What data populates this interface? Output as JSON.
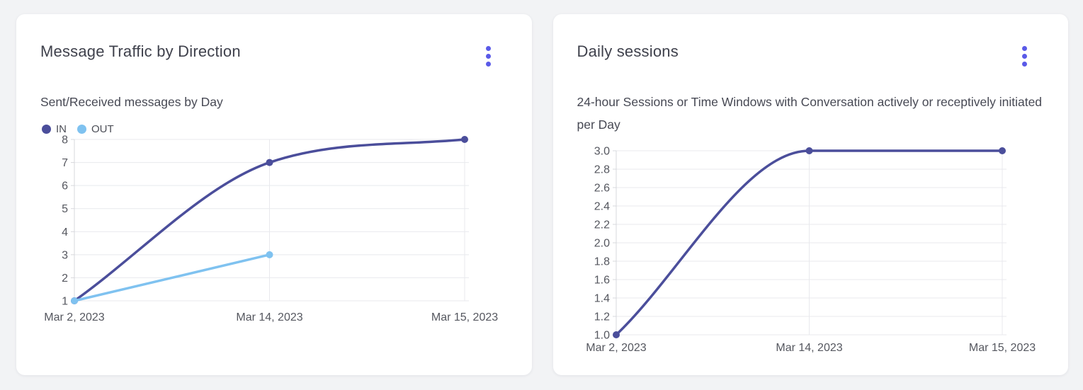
{
  "page": {
    "background_color": "#f2f3f5",
    "card_color": "#ffffff"
  },
  "cards": [
    {
      "title": "Message Traffic by Direction",
      "subtitle": "Sent/Received messages by Day",
      "menu_icon": "kebab-menu-icon",
      "menu_color": "#5a5ae8",
      "chart_data": {
        "type": "line",
        "categories": [
          "Mar 2, 2023",
          "Mar 14, 2023",
          "Mar 15, 2023"
        ],
        "series": [
          {
            "name": "IN",
            "color": "#4b4e9b",
            "values": [
              1,
              7,
              8
            ]
          },
          {
            "name": "OUT",
            "color": "#7fc2f0",
            "values": [
              1,
              3,
              null
            ]
          }
        ],
        "ylim": [
          1,
          8
        ],
        "ytick_step": 1,
        "grid": true,
        "legend_position": "top-left",
        "grid_color": "#e8e9ed",
        "axis_color": "#d7d8dc",
        "tick_label_color": "#55575f"
      }
    },
    {
      "title": "Daily sessions",
      "subtitle": "24-hour Sessions or Time Windows with Conversation actively or receptively initiated per Day",
      "menu_icon": "kebab-menu-icon",
      "menu_color": "#5a5ae8",
      "chart_data": {
        "type": "line",
        "categories": [
          "Mar 2, 2023",
          "Mar 14, 2023",
          "Mar 15, 2023"
        ],
        "series": [
          {
            "color": "#4b4e9b",
            "values": [
              1.0,
              3.0,
              3.0
            ]
          }
        ],
        "ylim": [
          1.0,
          3.0
        ],
        "ytick_step": 0.2,
        "grid": true,
        "legend_position": "none",
        "grid_color": "#e8e9ed",
        "axis_color": "#d7d8dc",
        "tick_label_color": "#55575f"
      }
    }
  ]
}
